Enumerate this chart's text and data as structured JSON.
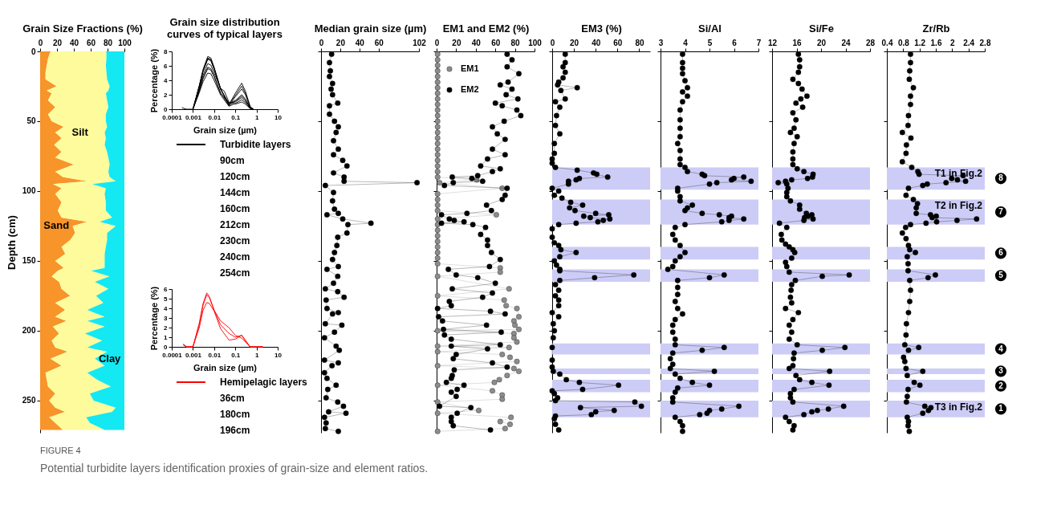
{
  "chart_data": [
    {
      "type": "area",
      "xlabel": "Grain Size Fractions (%)",
      "ylabel": "Depth (cm)",
      "orientation": "horizontal",
      "stacked": true,
      "x": [
        0,
        5,
        10,
        15,
        20,
        25,
        28,
        30,
        35,
        40,
        45,
        50,
        54,
        58,
        62,
        67,
        72,
        76,
        81,
        86,
        90,
        93,
        95,
        98,
        102,
        108,
        114,
        119,
        122,
        125,
        130,
        135,
        140,
        145,
        150,
        155,
        157,
        161,
        165,
        170,
        175,
        180,
        185,
        190,
        193,
        197,
        202,
        207,
        212,
        215,
        220,
        225,
        230,
        235,
        240,
        245,
        250,
        255,
        258,
        262,
        266,
        271
      ],
      "series": [
        {
          "name": "Sand",
          "color": "#f7942a",
          "values": [
            12.3,
            9.4,
            7.9,
            6.4,
            6.4,
            19.6,
            7.9,
            13.7,
            9.4,
            18.0,
            9.4,
            13.7,
            28.0,
            18.0,
            25.4,
            16.7,
            25.4,
            18.0,
            40.0,
            18.0,
            27.0,
            56.0,
            15.2,
            25.4,
            18.0,
            25.4,
            21.0,
            25.4,
            56.0,
            38.6,
            41.5,
            35.7,
            25.4,
            29.8,
            18.0,
            28.0,
            21.0,
            13.7,
            22.5,
            25.4,
            35.7,
            18.0,
            29.8,
            18.0,
            31.3,
            15.2,
            22.5,
            13.7,
            18.0,
            32.7,
            12.3,
            25.4,
            6.4,
            7.9,
            9.4,
            18.0,
            10.8,
            18.0,
            29.8,
            10.8,
            18.0,
            27.0
          ]
        },
        {
          "name": "Silt",
          "color": "#fdfb9c",
          "values": [
            66.4,
            69.3,
            70.1,
            72.3,
            73.1,
            62.9,
            73.1,
            64.3,
            70.1,
            63.0,
            68.6,
            64.3,
            51.5,
            58.6,
            52.6,
            59.9,
            54.1,
            63.0,
            42.5,
            63.0,
            55.5,
            33.8,
            46.8,
            52.6,
            58.6,
            52.6,
            57.0,
            60.0,
            14.8,
            51.2,
            38.0,
            43.8,
            52.6,
            46.8,
            58.6,
            48.6,
            39.5,
            68.8,
            42.5,
            55.6,
            30.7,
            57.1,
            26.2,
            58.6,
            24.7,
            61.4,
            30.7,
            60.0,
            38.0,
            46.8,
            52.7,
            51.2,
            49.6,
            59.9,
            74.6,
            41.0,
            52.7,
            71.8,
            55.6,
            43.9,
            41.0,
            49.6
          ]
        },
        {
          "name": "Clay",
          "color": "#14e8f2",
          "values": [
            21.3,
            21.3,
            22.0,
            21.3,
            20.5,
            17.5,
            19.0,
            22.0,
            20.5,
            19.0,
            22.0,
            22.0,
            20.5,
            23.4,
            22.0,
            23.4,
            20.5,
            19.0,
            17.5,
            19.0,
            17.5,
            10.2,
            38.0,
            22.0,
            23.4,
            22.0,
            22.0,
            14.6,
            29.2,
            10.2,
            20.5,
            20.5,
            22.0,
            23.4,
            23.4,
            23.4,
            39.5,
            17.5,
            35.0,
            19.0,
            33.6,
            24.9,
            44.0,
            23.4,
            44.0,
            23.4,
            46.8,
            26.3,
            44.0,
            20.5,
            35.0,
            23.4,
            44.0,
            32.2,
            16.0,
            41.0,
            36.5,
            10.2,
            14.6,
            45.3,
            41.0,
            23.4
          ]
        }
      ],
      "xlim": [
        0,
        100
      ],
      "xticks": [
        0,
        20,
        40,
        60,
        80,
        100
      ],
      "ylim": [
        273,
        0
      ],
      "yticks": [
        0,
        50,
        100,
        150,
        200,
        250
      ]
    },
    {
      "type": "line",
      "title": "Grain size distribution curves of typical layers",
      "xlabel": "Grain size (µm)",
      "ylabel": "Percentage (%)",
      "log": "x",
      "legend": "bottom",
      "series": [
        {
          "name": "Turbidite layers",
          "color": "#000000",
          "x": [
            0.0003,
            0.0005,
            0.001,
            0.002,
            0.003,
            0.005,
            0.007,
            0.01,
            0.02,
            0.05,
            0.1,
            0.2,
            0.3,
            0.5,
            0.7
          ],
          "values": [
            0.2,
            0,
            0,
            3.3,
            5.5,
            7.3,
            7.1,
            5.8,
            2.9,
            0.6,
            2.2,
            3.6,
            2.5,
            0.4,
            0
          ]
        },
        {
          "color": "#000000",
          "x": [
            0.001,
            0.002,
            0.003,
            0.005,
            0.007,
            0.01,
            0.02,
            0.05,
            0.1,
            0.2,
            0.3,
            0.5,
            0.7
          ],
          "values": [
            0,
            3.2,
            5.3,
            7.1,
            6.9,
            5.7,
            2.8,
            0.7,
            1.9,
            3.2,
            2.2,
            0.3,
            0
          ]
        },
        {
          "color": "#000000",
          "x": [
            0.001,
            0.002,
            0.003,
            0.005,
            0.007,
            0.01,
            0.02,
            0.05,
            0.1,
            0.2,
            0.3,
            0.5,
            0.7
          ],
          "values": [
            0,
            3.2,
            5.3,
            7.0,
            6.8,
            5.6,
            2.8,
            0.5,
            1.7,
            2.8,
            2.0,
            0.3,
            0
          ]
        },
        {
          "color": "#000000",
          "x": [
            0.001,
            0.002,
            0.003,
            0.005,
            0.007,
            0.01,
            0.02,
            0.05,
            0.1,
            0.2,
            0.3,
            0.5,
            0.7
          ],
          "values": [
            0,
            3.1,
            5.2,
            6.9,
            6.7,
            5.5,
            2.8,
            0.8,
            1.2,
            2.0,
            1.4,
            0.2,
            0
          ]
        },
        {
          "color": "#000000",
          "x": [
            0.001,
            0.002,
            0.003,
            0.005,
            0.007,
            0.01,
            0.02,
            0.05,
            0.1,
            0.2,
            0.3,
            0.5,
            0.7
          ],
          "values": [
            0,
            2.6,
            4.4,
            5.8,
            5.6,
            4.6,
            2.3,
            0.5,
            1.1,
            1.8,
            1.3,
            0.2,
            0
          ]
        },
        {
          "color": "#000000",
          "x": [
            0.001,
            0.002,
            0.003,
            0.005,
            0.007,
            0.01,
            0.02,
            0.05,
            0.1,
            0.2,
            0.3,
            0.5,
            0.7
          ],
          "values": [
            0,
            2.5,
            4.2,
            5.6,
            5.4,
            4.5,
            2.2,
            0.9,
            1.0,
            1.6,
            1.1,
            0.2,
            0
          ]
        },
        {
          "color": "#000000",
          "x": [
            0.001,
            0.002,
            0.003,
            0.005,
            0.007,
            0.01,
            0.02,
            0.05,
            0.1,
            0.2,
            0.3,
            0.5,
            0.7
          ],
          "values": [
            0,
            2.3,
            3.8,
            5.0,
            4.9,
            4.0,
            2.0,
            0.4,
            0.8,
            1.3,
            0.9,
            0.1,
            0
          ]
        },
        {
          "color": "#000000",
          "x": [
            0.001,
            0.002,
            0.003,
            0.005,
            0.007,
            0.01,
            0.02,
            0.03,
            0.05,
            0.1,
            0.2,
            0.3,
            0.5,
            0.7
          ],
          "values": [
            0,
            2.8,
            4.7,
            6.3,
            6.1,
            5.0,
            2.9,
            2.5,
            1.0,
            0.7,
            1.0,
            0.7,
            0.1,
            0
          ]
        }
      ],
      "xlim": [
        0.0001,
        10
      ],
      "xticks": [
        0.0001,
        0.001,
        0.01,
        0.1,
        1,
        10
      ],
      "ylim": [
        0,
        8
      ],
      "yticks": [
        0,
        2,
        4,
        6,
        8
      ],
      "annotations": [
        "90cm",
        "120cm",
        "144cm",
        "160cm",
        "212cm",
        "230cm",
        "240cm",
        "254cm"
      ]
    },
    {
      "type": "line",
      "xlabel": "Grain size (µm)",
      "ylabel": "Percentage (%)",
      "log": "x",
      "legend": "bottom",
      "series": [
        {
          "name": "Hemipelagic layers",
          "color": "#ff0000",
          "x": [
            0.00035,
            0.0005,
            0.001,
            0.002,
            0.003,
            0.0045,
            0.006,
            0.01,
            0.02,
            0.05,
            0.1,
            0.2,
            0.3,
            0.5,
            1,
            2
          ],
          "values": [
            0.3,
            0,
            0,
            2.5,
            4.5,
            5.6,
            5.2,
            3.8,
            2.7,
            2.0,
            1.2,
            0.9,
            0.5,
            0,
            0,
            0
          ]
        },
        {
          "color": "#ff0000",
          "x": [
            0.00035,
            0.0005,
            0.001,
            0.002,
            0.003,
            0.0045,
            0.006,
            0.01,
            0.02,
            0.05,
            0.1,
            0.2,
            0.3,
            0.5,
            1,
            2
          ],
          "values": [
            0.2,
            0,
            0,
            2.3,
            4.3,
            5.4,
            5.1,
            3.8,
            2.3,
            1.4,
            1.0,
            1.2,
            0.6,
            0,
            0,
            0
          ]
        },
        {
          "color": "#ff0000",
          "x": [
            0.00035,
            0.0005,
            0.001,
            0.002,
            0.003,
            0.0045,
            0.006,
            0.01,
            0.02,
            0.05,
            0.1,
            0.2,
            0.3,
            0.5,
            1,
            2
          ],
          "values": [
            0.2,
            0,
            0,
            2.0,
            3.8,
            4.6,
            4.5,
            3.7,
            1.9,
            0.7,
            0.8,
            1.2,
            0.7,
            0,
            0,
            0
          ]
        }
      ],
      "xlim": [
        0.0001,
        10
      ],
      "xticks": [
        0.0001,
        0.001,
        0.01,
        0.1,
        1,
        10
      ],
      "ylim": [
        0,
        6
      ],
      "yticks": [
        0,
        1,
        2,
        3,
        4,
        5,
        6
      ],
      "annotations": [
        "36cm",
        "180cm",
        "196cm"
      ]
    },
    {
      "type": "line",
      "xlabel": "Median grain size (µm)",
      "orientation": "horizontal",
      "marker": "circle",
      "tick_labels": "x",
      "x": [
        2,
        8,
        14,
        18,
        23,
        27,
        31,
        37,
        39,
        45,
        50,
        54,
        58,
        64,
        70,
        74,
        78,
        82,
        87,
        90,
        93,
        94,
        96,
        101,
        107,
        113,
        116,
        117,
        120,
        123,
        124,
        130,
        133,
        139,
        144,
        149,
        154,
        156,
        161,
        166,
        170,
        172,
        176,
        178,
        184,
        187,
        188,
        195,
        196,
        201,
        205,
        211,
        214,
        221,
        223,
        225,
        230,
        234,
        239,
        242,
        248,
        251,
        254,
        258,
        259,
        262,
        266,
        270,
        272
      ],
      "series": [
        {
          "color": "#000000",
          "values": [
            11,
            8.8,
            9.7,
            8.8,
            12,
            10.5,
            12,
            17.4,
            8.8,
            8.8,
            14,
            18,
            15.7,
            13,
            18,
            13,
            22.6,
            27,
            13,
            24,
            24,
            100,
            4.5,
            13,
            12,
            14,
            18,
            6.2,
            22.6,
            52,
            28,
            27,
            17.4,
            16.5,
            14,
            12,
            18,
            6.2,
            17.4,
            13,
            4.5,
            17.4,
            24,
            5.3,
            6.2,
            18,
            12,
            4.5,
            21.7,
            14,
            3.6,
            15.7,
            19,
            3.6,
            18,
            11.4,
            3.6,
            6.2,
            15.7,
            7,
            5.3,
            17.4,
            23.4,
            7.9,
            26,
            3.6,
            5.3,
            4.5,
            18
          ]
        }
      ],
      "xlim": [
        0,
        102
      ],
      "xticks": [
        0,
        20,
        40,
        60,
        102
      ],
      "ylim": [
        273,
        0
      ],
      "yticks": [
        0,
        50,
        100,
        150,
        200,
        250
      ]
    },
    {
      "type": "line",
      "xlabel": "EM1 and EM2 (%)",
      "orientation": "horizontal",
      "marker": "circle",
      "tick_labels": "x",
      "legend": "top left",
      "series": [
        {
          "name": "EM1",
          "color": "#8c8c8c",
          "x": [
            2,
            6,
            10,
            14,
            18,
            22,
            26,
            30,
            34,
            38,
            42,
            46,
            50,
            54,
            58,
            62,
            66,
            70,
            74,
            78,
            82,
            86,
            90,
            92,
            94,
            98,
            102,
            106,
            110,
            114,
            117,
            120,
            124,
            128,
            132,
            136,
            140,
            144,
            148,
            152,
            155,
            158,
            161,
            170,
            175,
            178,
            182,
            184,
            190,
            193,
            196,
            199,
            200,
            202,
            205,
            208,
            211,
            212,
            215,
            217,
            219,
            222,
            225,
            227,
            229,
            232,
            235,
            237,
            239,
            243,
            246,
            249,
            251,
            257,
            259,
            262,
            265,
            267,
            270,
            272
          ],
          "values": [
            1,
            1,
            1,
            1,
            1,
            1,
            1,
            1,
            1,
            1,
            1,
            1,
            1,
            1,
            1,
            1,
            1,
            1,
            1,
            1,
            1,
            1,
            1,
            41,
            3,
            67,
            1,
            1,
            1,
            1,
            61,
            1,
            1,
            1,
            1,
            1,
            1,
            1,
            1,
            1,
            65,
            65,
            1,
            74,
            1,
            69,
            71,
            82,
            84,
            79,
            80,
            84,
            1,
            79,
            79,
            82,
            1,
            74,
            1,
            67,
            75,
            82,
            1,
            79,
            84,
            72,
            64,
            59,
            1,
            57,
            67,
            67,
            1,
            43,
            1,
            76,
            65,
            75,
            70,
            1
          ]
        },
        {
          "name": "EM2",
          "color": "#000000",
          "x": [
            2,
            6,
            11,
            16,
            22,
            24,
            27,
            31,
            34,
            37,
            39,
            42,
            46,
            50,
            54,
            59,
            63,
            70,
            74,
            77,
            82,
            84,
            86,
            89,
            90,
            91,
            93,
            94,
            96,
            98,
            103,
            106,
            110,
            114,
            116,
            117,
            120,
            121,
            122,
            123,
            124,
            126,
            131,
            135,
            139,
            144,
            149,
            154,
            156,
            160,
            162,
            166,
            170,
            173,
            176,
            179,
            182,
            184,
            186,
            188,
            190,
            193,
            196,
            199,
            201,
            203,
            206,
            210,
            211,
            213,
            217,
            220,
            223,
            226,
            228,
            232,
            234,
            237,
            239,
            242,
            244,
            247,
            254,
            255,
            259,
            262,
            265,
            268,
            271
          ],
          "values": [
            72,
            77,
            72,
            84,
            73,
            65,
            77,
            71,
            83,
            60,
            67,
            82,
            86,
            69,
            57,
            62,
            70,
            57,
            70,
            52,
            45,
            65,
            57,
            42,
            16,
            36,
            47,
            17,
            8,
            72,
            70,
            67,
            51,
            56,
            31,
            5,
            13,
            18,
            28,
            5,
            37,
            50,
            45,
            52,
            52,
            56,
            65,
            54,
            12,
            20,
            42,
            60,
            16,
            57,
            47,
            13,
            15,
            1,
            55,
            70,
            2,
            6,
            51,
            7,
            66,
            8,
            15,
            65,
            15,
            52,
            20,
            17,
            57,
            72,
            18,
            16,
            15,
            10,
            28,
            21,
            15,
            20,
            3,
            35,
            21,
            15,
            15,
            17,
            55
          ]
        }
      ],
      "xlim": [
        0,
        100
      ],
      "xticks": [
        0,
        20,
        40,
        60,
        80,
        100
      ],
      "ylim": [
        273,
        0
      ],
      "yticks": [
        0,
        50,
        100,
        150,
        200,
        250
      ]
    },
    {
      "type": "line",
      "xlabel": "EM3 (%)",
      "orientation": "horizontal",
      "marker": "circle",
      "tick_labels": "x",
      "x": [
        2,
        8,
        11,
        15,
        19,
        22,
        24,
        26,
        28,
        34,
        36,
        40,
        46,
        53,
        59,
        66,
        73,
        77,
        80,
        83,
        85,
        87,
        88,
        90,
        91,
        92,
        93,
        95,
        98,
        100,
        103,
        105,
        108,
        110,
        112,
        114,
        116,
        117,
        118,
        119,
        120,
        121,
        122,
        123,
        124,
        127,
        133,
        137,
        139,
        142,
        144,
        147,
        150,
        153,
        156,
        157,
        160,
        162,
        164,
        167,
        171,
        175,
        178,
        182,
        187,
        190,
        195,
        200,
        205,
        212,
        221,
        226,
        229,
        231,
        235,
        237,
        239,
        242,
        243,
        245,
        248,
        250,
        251,
        254,
        255,
        257,
        258,
        260,
        261,
        263,
        267,
        271
      ],
      "series": [
        {
          "color": "#000000",
          "values": [
            12,
            12,
            10,
            12,
            10,
            6,
            5,
            23,
            8,
            12,
            3,
            7,
            4,
            3,
            7,
            2,
            2,
            0,
            0,
            3,
            23,
            38,
            41,
            51,
            25,
            22,
            15,
            15,
            0,
            6,
            2,
            9,
            17,
            28,
            16,
            21,
            40,
            52,
            29,
            35,
            53,
            47,
            42,
            22,
            6,
            0,
            0,
            2,
            6,
            8,
            22,
            7,
            2,
            4,
            7,
            7,
            75,
            39,
            7,
            3,
            6,
            3,
            6,
            6,
            0,
            6,
            1,
            2,
            1,
            0,
            0,
            0,
            1,
            7,
            13,
            25,
            61,
            28,
            0,
            2,
            5,
            3,
            76,
            82,
            26,
            57,
            40,
            36,
            3,
            2,
            3,
            6
          ]
        }
      ],
      "xlim": [
        0,
        90
      ],
      "xticks": [
        0,
        20,
        40,
        60,
        80
      ],
      "ylim": [
        273,
        0
      ],
      "yticks": [
        0,
        50,
        100,
        150,
        200,
        250
      ],
      "bands": [
        {
          "axis": "y",
          "from": 83,
          "to": 99,
          "color": "#ccccf7"
        },
        {
          "axis": "y",
          "from": 106,
          "to": 124,
          "color": "#ccccf7"
        },
        {
          "axis": "y",
          "from": 140,
          "to": 149,
          "color": "#ccccf7"
        },
        {
          "axis": "y",
          "from": 156,
          "to": 165,
          "color": "#ccccf7"
        },
        {
          "axis": "y",
          "from": 209,
          "to": 217,
          "color": "#ccccf7"
        },
        {
          "axis": "y",
          "from": 227,
          "to": 231,
          "color": "#ccccf7"
        },
        {
          "axis": "y",
          "from": 235,
          "to": 244,
          "color": "#ccccf7"
        },
        {
          "axis": "y",
          "from": 250,
          "to": 262,
          "color": "#ccccf7"
        }
      ]
    },
    {
      "type": "line",
      "xlabel": "Si/Al",
      "orientation": "horizontal",
      "marker": "circle",
      "tick_labels": "x",
      "x": [
        2,
        8,
        12,
        16,
        21,
        26,
        29,
        32,
        36,
        42,
        49,
        55,
        61,
        66,
        71,
        77,
        81,
        83,
        86,
        88,
        89,
        90,
        91,
        92,
        93,
        94,
        95,
        98,
        100,
        104,
        107,
        110,
        112,
        114,
        116,
        117,
        118,
        119,
        120,
        121,
        122,
        124,
        126,
        131,
        135,
        139,
        144,
        147,
        150,
        154,
        156,
        160,
        162,
        164,
        169,
        174,
        179,
        184,
        188,
        192,
        196,
        201,
        206,
        210,
        212,
        214,
        216,
        220,
        224,
        227,
        229,
        231,
        234,
        237,
        239,
        241,
        244,
        248,
        251,
        254,
        256,
        257,
        259,
        260,
        262,
        265,
        268,
        272
      ],
      "series": [
        {
          "color": "#000000",
          "values": [
            3.9,
            3.9,
            3.9,
            3.9,
            4.0,
            4.1,
            3.9,
            4.1,
            3.9,
            3.8,
            3.8,
            3.8,
            3.8,
            3.7,
            3.8,
            3.8,
            3.8,
            4.0,
            4.1,
            4.7,
            4.8,
            6.4,
            6.0,
            5.9,
            6.7,
            5.3,
            5.0,
            3.7,
            3.7,
            3.8,
            3.8,
            4.3,
            4.1,
            4.0,
            4.7,
            5.4,
            5.9,
            5.8,
            6.4,
            5.8,
            5.5,
            4.0,
            3.6,
            3.5,
            3.6,
            3.8,
            4.0,
            3.8,
            3.6,
            3.5,
            3.3,
            5.6,
            5.0,
            3.7,
            3.7,
            3.7,
            3.6,
            3.7,
            3.9,
            3.6,
            3.5,
            3.5,
            3.6,
            3.6,
            5.6,
            4.7,
            3.5,
            3.4,
            3.5,
            3.4,
            5.2,
            3.6,
            3.8,
            4.3,
            5.0,
            3.7,
            3.6,
            3.5,
            3.5,
            6.2,
            5.5,
            5.0,
            4.9,
            4.6,
            3.6,
            3.8,
            3.9,
            3.9
          ]
        }
      ],
      "xlim": [
        3,
        7
      ],
      "xticks": [
        3,
        4,
        5,
        6,
        7
      ],
      "ylim": [
        273,
        0
      ],
      "yticks": [
        0,
        50,
        100,
        150,
        200,
        250
      ],
      "bands": [
        {
          "axis": "y",
          "from": 83,
          "to": 99,
          "color": "#ccccf7"
        },
        {
          "axis": "y",
          "from": 106,
          "to": 124,
          "color": "#ccccf7"
        },
        {
          "axis": "y",
          "from": 140,
          "to": 149,
          "color": "#ccccf7"
        },
        {
          "axis": "y",
          "from": 156,
          "to": 165,
          "color": "#ccccf7"
        },
        {
          "axis": "y",
          "from": 209,
          "to": 217,
          "color": "#ccccf7"
        },
        {
          "axis": "y",
          "from": 227,
          "to": 231,
          "color": "#ccccf7"
        },
        {
          "axis": "y",
          "from": 235,
          "to": 244,
          "color": "#ccccf7"
        },
        {
          "axis": "y",
          "from": 250,
          "to": 262,
          "color": "#ccccf7"
        }
      ]
    },
    {
      "type": "line",
      "xlabel": "Si/Fe",
      "orientation": "horizontal",
      "marker": "circle",
      "tick_labels": "x",
      "x": [
        2,
        6,
        11,
        15,
        20,
        23,
        27,
        32,
        34,
        37,
        40,
        44,
        49,
        55,
        58,
        61,
        66,
        72,
        77,
        81,
        84,
        86,
        88,
        90,
        91,
        92,
        93,
        94,
        95,
        98,
        101,
        104,
        107,
        110,
        113,
        116,
        117,
        118,
        119,
        120,
        121,
        123,
        126,
        131,
        135,
        138,
        140,
        142,
        144,
        148,
        151,
        154,
        158,
        160,
        161,
        164,
        167,
        171,
        176,
        180,
        184,
        187,
        192,
        196,
        201,
        206,
        210,
        212,
        214,
        216,
        220,
        225,
        227,
        229,
        232,
        235,
        237,
        239,
        242,
        245,
        248,
        251,
        254,
        256,
        257,
        258,
        260,
        262,
        265,
        268,
        271
      ],
      "series": [
        {
          "color": "#000000",
          "values": [
            16.3,
            16.5,
            16.5,
            16.3,
            15.4,
            16.3,
            16.9,
            17.7,
            16.7,
            15.9,
            17.0,
            15.4,
            15.9,
            15.6,
            15.0,
            16.1,
            15.6,
            15.4,
            15.4,
            15.4,
            16.1,
            17.2,
            18.7,
            18.6,
            17.8,
            15.2,
            14.2,
            13.0,
            14.4,
            14.6,
            14.4,
            14.4,
            15.0,
            16.5,
            16.5,
            17.6,
            18.5,
            17.9,
            17.3,
            18.7,
            17.2,
            13.2,
            14.4,
            13.5,
            13.6,
            14.2,
            14.8,
            15.4,
            15.7,
            15.2,
            14.2,
            14.4,
            14.8,
            24.6,
            20.2,
            15.8,
            15.2,
            15.1,
            15.0,
            15.2,
            14.2,
            16.3,
            15.4,
            14.8,
            15.2,
            14.8,
            16.1,
            23.9,
            20.2,
            15.6,
            15.5,
            15.4,
            14.8,
            21.4,
            15.9,
            16.5,
            18.5,
            21.3,
            15.6,
            15.0,
            15.0,
            15.4,
            23.7,
            21.2,
            19.4,
            18.5,
            17.2,
            14.2,
            14.8,
            15.6,
            15.4
          ]
        }
      ],
      "xlim": [
        12,
        28
      ],
      "xticks": [
        12,
        16,
        20,
        24,
        28
      ],
      "ylim": [
        273,
        0
      ],
      "yticks": [
        0,
        50,
        100,
        150,
        200,
        250
      ],
      "bands": [
        {
          "axis": "y",
          "from": 83,
          "to": 99,
          "color": "#ccccf7"
        },
        {
          "axis": "y",
          "from": 106,
          "to": 124,
          "color": "#ccccf7"
        },
        {
          "axis": "y",
          "from": 140,
          "to": 149,
          "color": "#ccccf7"
        },
        {
          "axis": "y",
          "from": 156,
          "to": 165,
          "color": "#ccccf7"
        },
        {
          "axis": "y",
          "from": 209,
          "to": 217,
          "color": "#ccccf7"
        },
        {
          "axis": "y",
          "from": 227,
          "to": 231,
          "color": "#ccccf7"
        },
        {
          "axis": "y",
          "from": 235,
          "to": 244,
          "color": "#ccccf7"
        },
        {
          "axis": "y",
          "from": 250,
          "to": 262,
          "color": "#ccccf7"
        }
      ]
    },
    {
      "type": "line",
      "xlabel": "Zr/Rb",
      "orientation": "horizontal",
      "marker": "circle",
      "tick_labels": "x",
      "x": [
        2,
        8,
        14,
        20,
        26,
        32,
        38,
        46,
        53,
        58,
        62,
        67,
        73,
        79,
        83,
        86,
        88,
        89,
        91,
        92,
        93,
        94,
        95,
        96,
        98,
        103,
        106,
        109,
        112,
        116,
        117,
        118,
        119,
        120,
        121,
        122,
        123,
        124,
        126,
        130,
        134,
        139,
        142,
        144,
        147,
        152,
        157,
        160,
        162,
        164,
        171,
        179,
        187,
        195,
        203,
        210,
        212,
        214,
        219,
        222,
        227,
        229,
        232,
        237,
        239,
        242,
        247,
        251,
        254,
        255,
        257,
        259,
        262,
        265,
        268,
        272
      ],
      "series": [
        {
          "color": "#000000",
          "values": [
            0.98,
            0.98,
            0.96,
            0.95,
            1.05,
            0.98,
            0.98,
            0.93,
            0.92,
            0.78,
            0.99,
            0.88,
            0.87,
            0.78,
            1.01,
            1.16,
            1.19,
            2.27,
            1.99,
            2.13,
            2.33,
            1.85,
            1.39,
            1.28,
            0.93,
            0.87,
            1.05,
            1.15,
            1.12,
            1.12,
            1.47,
            1.61,
            1.51,
            2.6,
            2.12,
            1.62,
            1.36,
            0.98,
            0.86,
            0.78,
            0.87,
            0.93,
            0.96,
            1.1,
            0.9,
            0.92,
            0.92,
            1.59,
            1.41,
            0.96,
            0.98,
            0.96,
            0.93,
            0.88,
            0.87,
            0.84,
            1.18,
            0.93,
            0.81,
            0.84,
            0.87,
            1.28,
            0.9,
            1.07,
            1.21,
            0.92,
            0.9,
            0.88,
            1.33,
            1.48,
            1.42,
            1.28,
            0.9,
            0.93,
            0.92,
            0.95
          ]
        }
      ],
      "xlim": [
        0.4,
        2.8
      ],
      "xticks": [
        0.4,
        0.8,
        1.2,
        1.6,
        2,
        2.4,
        2.8
      ],
      "ylim": [
        273,
        0
      ],
      "yticks": [
        0,
        50,
        100,
        150,
        200,
        250
      ],
      "bands": [
        {
          "axis": "y",
          "from": 83,
          "to": 99,
          "color": "#ccccf7",
          "label": "T1 in Fig.2"
        },
        {
          "axis": "y",
          "from": 106,
          "to": 124,
          "color": "#ccccf7",
          "label": "T2 in Fig.2"
        },
        {
          "axis": "y",
          "from": 140,
          "to": 149,
          "color": "#ccccf7"
        },
        {
          "axis": "y",
          "from": 156,
          "to": 165,
          "color": "#ccccf7"
        },
        {
          "axis": "y",
          "from": 209,
          "to": 217,
          "color": "#ccccf7"
        },
        {
          "axis": "y",
          "from": 227,
          "to": 231,
          "color": "#ccccf7"
        },
        {
          "axis": "y",
          "from": 235,
          "to": 244,
          "color": "#ccccf7"
        },
        {
          "axis": "y",
          "from": 250,
          "to": 262,
          "color": "#ccccf7",
          "label": "T3 in Fig.2"
        }
      ],
      "annotations": [
        "8",
        "7",
        "6",
        "5",
        "4",
        "3",
        "2",
        "1"
      ]
    },
    {
      "type": "other",
      "title": "FIGURE 4",
      "annotations": [
        "Potential turbidite layers identification proxies of grain-size and element ratios."
      ]
    }
  ]
}
